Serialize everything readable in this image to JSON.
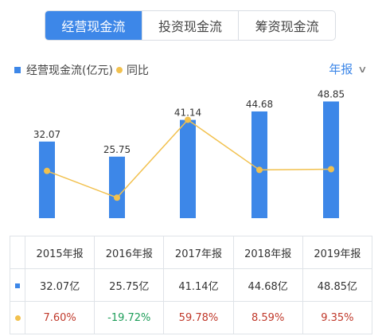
{
  "tabs": [
    {
      "label": "经营现金流",
      "active": true
    },
    {
      "label": "投资现金流",
      "active": false
    },
    {
      "label": "筹资现金流",
      "active": false
    }
  ],
  "legend": {
    "bar_label": "经营现金流(亿元)",
    "line_label": "同比"
  },
  "period_selector": {
    "label": "年报",
    "icon": "chevron-down-icon"
  },
  "colors": {
    "bar": "#3d87e8",
    "line": "#f2c14e",
    "positive": "#c0392b",
    "negative": "#1e9e5a",
    "accent": "#3d87e8"
  },
  "chart_data": {
    "type": "bar",
    "categories": [
      "2015年报",
      "2016年报",
      "2017年报",
      "2018年报",
      "2019年报"
    ],
    "series": [
      {
        "name": "经营现金流(亿元)",
        "type": "bar",
        "values": [
          32.07,
          25.75,
          41.14,
          44.68,
          48.85
        ],
        "labels": [
          "32.07",
          "25.75",
          "41.14",
          "44.68",
          "48.85"
        ]
      },
      {
        "name": "同比",
        "type": "line",
        "values": [
          7.6,
          -19.72,
          59.78,
          8.59,
          9.35
        ]
      }
    ],
    "legend_position": "top-left",
    "grid": false
  },
  "table": {
    "headers": [
      "2015年报",
      "2016年报",
      "2017年报",
      "2018年报",
      "2019年报"
    ],
    "cashflow_row": [
      "32.07亿",
      "25.75亿",
      "41.14亿",
      "44.68亿",
      "48.85亿"
    ],
    "yoy_row": [
      "7.60%",
      "-19.72%",
      "59.78%",
      "8.59%",
      "9.35%"
    ]
  }
}
